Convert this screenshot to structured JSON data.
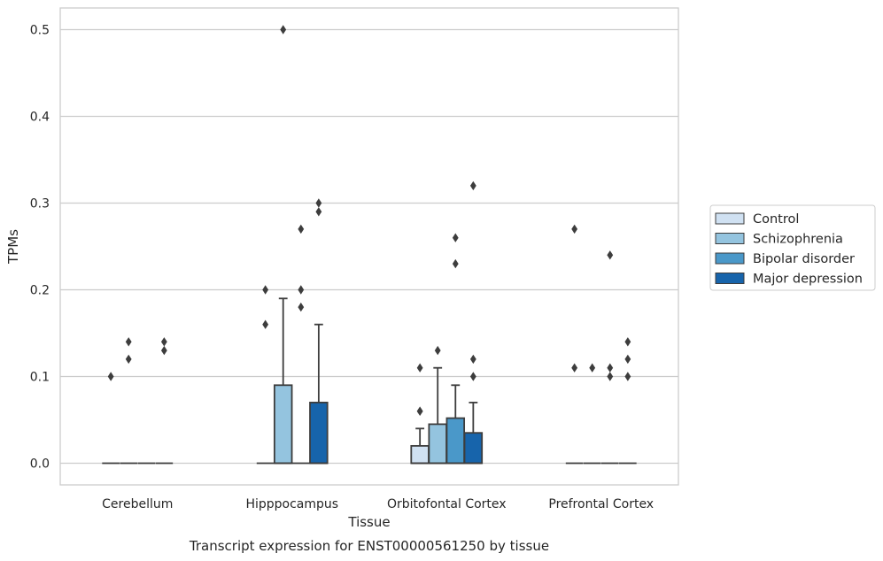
{
  "chart_data": {
    "type": "box",
    "title": "Transcript expression for ENST00000561250 by tissue",
    "xlabel": "Tissue",
    "ylabel": "TPMs",
    "ylim": [
      -0.025,
      0.525
    ],
    "yticks": [
      "0.0",
      "0.1",
      "0.2",
      "0.3",
      "0.4",
      "0.5"
    ],
    "grid": true,
    "legend_position": "right",
    "categories": [
      "Cerebellum",
      "Hipppocampus",
      "Orbitofontal Cortex",
      "Prefrontal Cortex"
    ],
    "series": [
      {
        "name": "Control",
        "color": "#d0e1f2",
        "boxes": [
          {
            "q1": 0,
            "median": 0,
            "q3": 0,
            "whisker_low": 0,
            "whisker_high": 0,
            "outliers": [
              0.1
            ]
          },
          {
            "q1": 0,
            "median": 0,
            "q3": 0,
            "whisker_low": 0,
            "whisker_high": 0,
            "outliers": [
              0.16,
              0.2
            ]
          },
          {
            "q1": 0,
            "median": 0,
            "q3": 0.02,
            "whisker_low": 0,
            "whisker_high": 0.04,
            "outliers": [
              0.06,
              0.06,
              0.11
            ]
          },
          {
            "q1": 0,
            "median": 0,
            "q3": 0,
            "whisker_low": 0,
            "whisker_high": 0,
            "outliers": [
              0.11,
              0.27
            ]
          }
        ]
      },
      {
        "name": "Schizophrenia",
        "color": "#94c4df",
        "boxes": [
          {
            "q1": 0,
            "median": 0,
            "q3": 0,
            "whisker_low": 0,
            "whisker_high": 0,
            "outliers": [
              0.12,
              0.14
            ]
          },
          {
            "q1": 0,
            "median": 0,
            "q3": 0.09,
            "whisker_low": 0,
            "whisker_high": 0.19,
            "outliers": [
              0.5
            ]
          },
          {
            "q1": 0,
            "median": 0,
            "q3": 0.045,
            "whisker_low": 0,
            "whisker_high": 0.11,
            "outliers": [
              0.13
            ]
          },
          {
            "q1": 0,
            "median": 0,
            "q3": 0,
            "whisker_low": 0,
            "whisker_high": 0,
            "outliers": [
              0.11
            ]
          }
        ]
      },
      {
        "name": "Bipolar disorder",
        "color": "#4a98c9",
        "boxes": [
          {
            "q1": 0,
            "median": 0,
            "q3": 0,
            "whisker_low": 0,
            "whisker_high": 0,
            "outliers": []
          },
          {
            "q1": 0,
            "median": 0,
            "q3": 0,
            "whisker_low": 0,
            "whisker_high": 0,
            "outliers": [
              0.18,
              0.2,
              0.27
            ]
          },
          {
            "q1": 0,
            "median": 0,
            "q3": 0.052,
            "whisker_low": 0,
            "whisker_high": 0.09,
            "outliers": [
              0.23,
              0.26
            ]
          },
          {
            "q1": 0,
            "median": 0,
            "q3": 0,
            "whisker_low": 0,
            "whisker_high": 0,
            "outliers": [
              0.1,
              0.11,
              0.24
            ]
          }
        ]
      },
      {
        "name": "Major depression",
        "color": "#1764ab",
        "boxes": [
          {
            "q1": 0,
            "median": 0,
            "q3": 0,
            "whisker_low": 0,
            "whisker_high": 0,
            "outliers": [
              0.13,
              0.14
            ]
          },
          {
            "q1": 0,
            "median": 0,
            "q3": 0.07,
            "whisker_low": 0,
            "whisker_high": 0.16,
            "outliers": [
              0.29,
              0.3
            ]
          },
          {
            "q1": 0,
            "median": 0,
            "q3": 0.035,
            "whisker_low": 0,
            "whisker_high": 0.07,
            "outliers": [
              0.1,
              0.12,
              0.32
            ]
          },
          {
            "q1": 0,
            "median": 0,
            "q3": 0,
            "whisker_low": 0,
            "whisker_high": 0,
            "outliers": [
              0.1,
              0.12,
              0.14
            ]
          }
        ]
      }
    ]
  }
}
